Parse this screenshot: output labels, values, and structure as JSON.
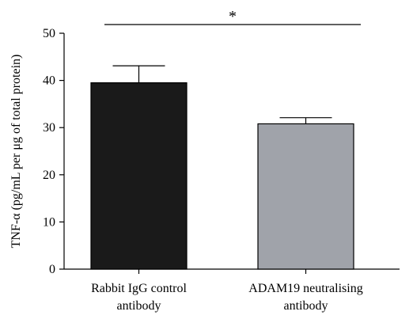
{
  "chart_data": {
    "type": "bar",
    "title": "",
    "xlabel": "",
    "ylabel": "TNF-α (pg/mL per μg of total protein)",
    "ylim": [
      0,
      50
    ],
    "yticks": [
      0,
      10,
      20,
      30,
      40,
      50
    ],
    "categories": [
      [
        "Rabbit IgG control",
        "antibody"
      ],
      [
        "ADAM19 neutralising",
        "antibody"
      ]
    ],
    "values": [
      39.5,
      30.8
    ],
    "error_upper": [
      43.1,
      32.1
    ],
    "colors": [
      "#1a1a1a",
      "#a0a3aa"
    ],
    "significance": {
      "between": [
        0,
        1
      ],
      "label": "*",
      "level": 49.8
    }
  }
}
